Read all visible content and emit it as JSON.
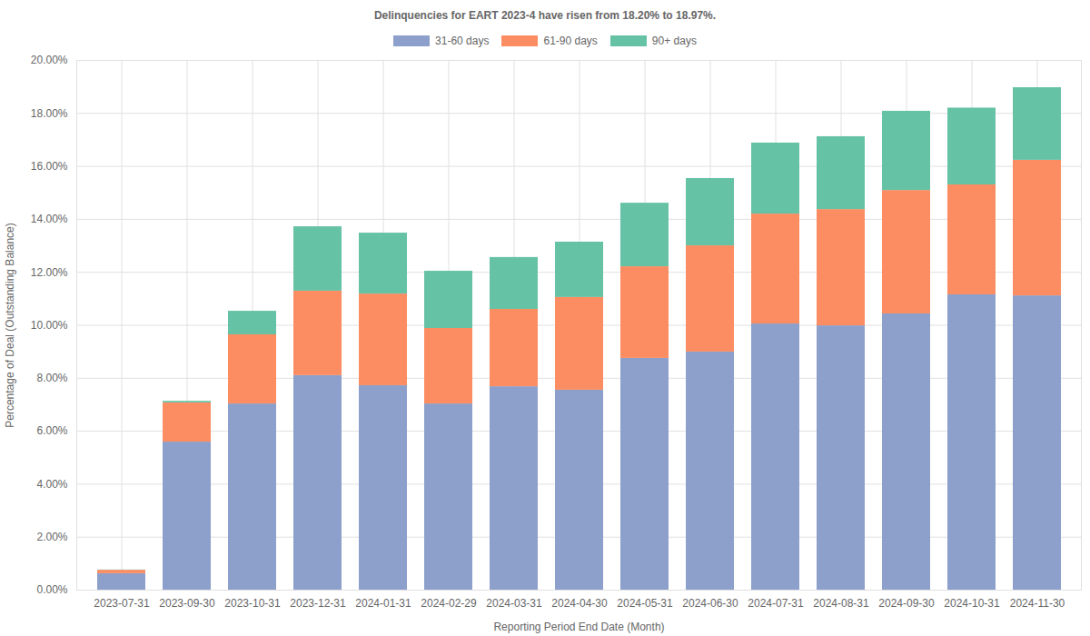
{
  "chart_data": {
    "type": "bar",
    "stacked": true,
    "grid": true,
    "title": "Delinquencies for EART 2023-4 have risen from 18.20% to 18.97%.",
    "x_label": "Reporting Period End Date (Month)",
    "y_label": "Percentage of Deal (Outstanding Balance)",
    "legend": "top",
    "categories": [
      "2023-07-31",
      "2023-09-30",
      "2023-10-31",
      "2023-12-31",
      "2024-01-31",
      "2024-02-29",
      "2024-03-31",
      "2024-04-30",
      "2024-05-31",
      "2024-06-30",
      "2024-07-31",
      "2024-08-31",
      "2024-09-30",
      "2024-10-31",
      "2024-11-30"
    ],
    "series": [
      {
        "name": "31-60 days",
        "color": "#8da0cb",
        "values": [
          0.62,
          5.59,
          7.03,
          8.1,
          7.72,
          7.03,
          7.68,
          7.55,
          8.75,
          8.99,
          10.05,
          9.98,
          10.43,
          11.15,
          11.11
        ]
      },
      {
        "name": "61-90 days",
        "color": "#fc8d62",
        "values": [
          0.13,
          1.48,
          2.61,
          3.19,
          3.46,
          2.85,
          2.92,
          3.5,
          3.46,
          4.01,
          4.15,
          4.39,
          4.66,
          4.15,
          5.12
        ]
      },
      {
        "name": "90+ days",
        "color": "#66c2a5",
        "values": [
          0.01,
          0.06,
          0.89,
          2.43,
          2.3,
          2.16,
          1.96,
          2.09,
          2.4,
          2.54,
          2.68,
          2.75,
          2.99,
          2.9,
          2.74
        ]
      }
    ],
    "ylim": [
      0,
      20
    ],
    "yticks": [
      {
        "value": 0,
        "label": "0.00%"
      },
      {
        "value": 2,
        "label": "2.00%"
      },
      {
        "value": 4,
        "label": "4.00%"
      },
      {
        "value": 6,
        "label": "6.00%"
      },
      {
        "value": 8,
        "label": "8.00%"
      },
      {
        "value": 10,
        "label": "10.00%"
      },
      {
        "value": 12,
        "label": "12.00%"
      },
      {
        "value": 14,
        "label": "14.00%"
      },
      {
        "value": 16,
        "label": "16.00%"
      },
      {
        "value": 18,
        "label": "18.00%"
      },
      {
        "value": 20,
        "label": "20.00%"
      }
    ]
  }
}
